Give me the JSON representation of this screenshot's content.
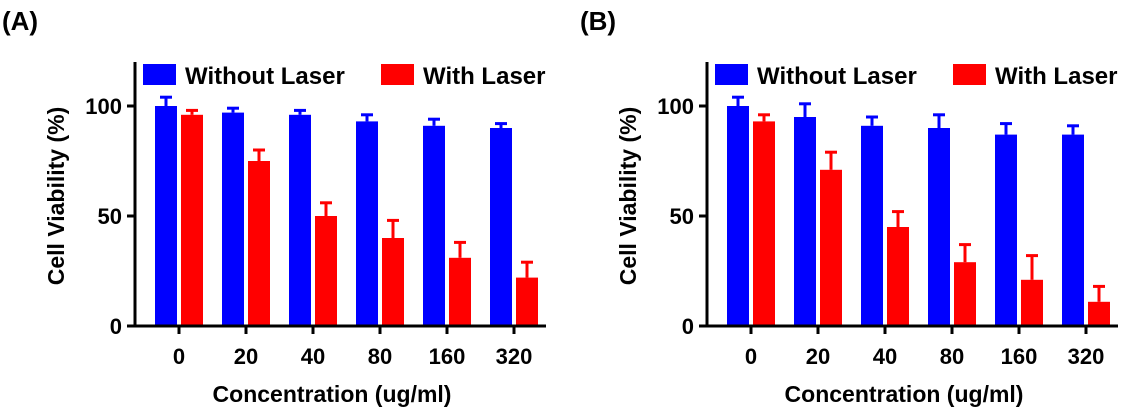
{
  "chart_data": [
    {
      "type": "bar",
      "panel_label": "(A)",
      "categories": [
        "0",
        "20",
        "40",
        "80",
        "160",
        "320"
      ],
      "series": [
        {
          "name": "Without Laser",
          "color": "#0000ff",
          "values": [
            100,
            97,
            96,
            93,
            91,
            90
          ],
          "error": [
            4,
            2,
            2,
            3,
            3,
            2
          ]
        },
        {
          "name": "With Laser",
          "color": "#ff0000",
          "values": [
            96,
            75,
            50,
            40,
            31,
            22
          ],
          "error": [
            2,
            5,
            6,
            8,
            7,
            7
          ]
        }
      ],
      "xlabel": "Concentration (ug/ml)",
      "ylabel": "Cell Viability (%)",
      "ylim": [
        0,
        120
      ],
      "yticks": [
        0,
        50,
        100
      ],
      "legend": "top",
      "grid": false
    },
    {
      "type": "bar",
      "panel_label": "(B)",
      "categories": [
        "0",
        "20",
        "40",
        "80",
        "160",
        "320"
      ],
      "series": [
        {
          "name": "Without Laser",
          "color": "#0000ff",
          "values": [
            100,
            95,
            91,
            90,
            87,
            87
          ],
          "error": [
            4,
            6,
            4,
            6,
            5,
            4
          ]
        },
        {
          "name": "With Laser",
          "color": "#ff0000",
          "values": [
            93,
            71,
            45,
            29,
            21,
            11
          ],
          "error": [
            3,
            8,
            7,
            8,
            11,
            7
          ]
        }
      ],
      "xlabel": "Concentration (ug/ml)",
      "ylabel": "Cell Viability (%)",
      "ylim": [
        0,
        120
      ],
      "yticks": [
        0,
        50,
        100
      ],
      "legend": "top",
      "grid": false
    }
  ]
}
